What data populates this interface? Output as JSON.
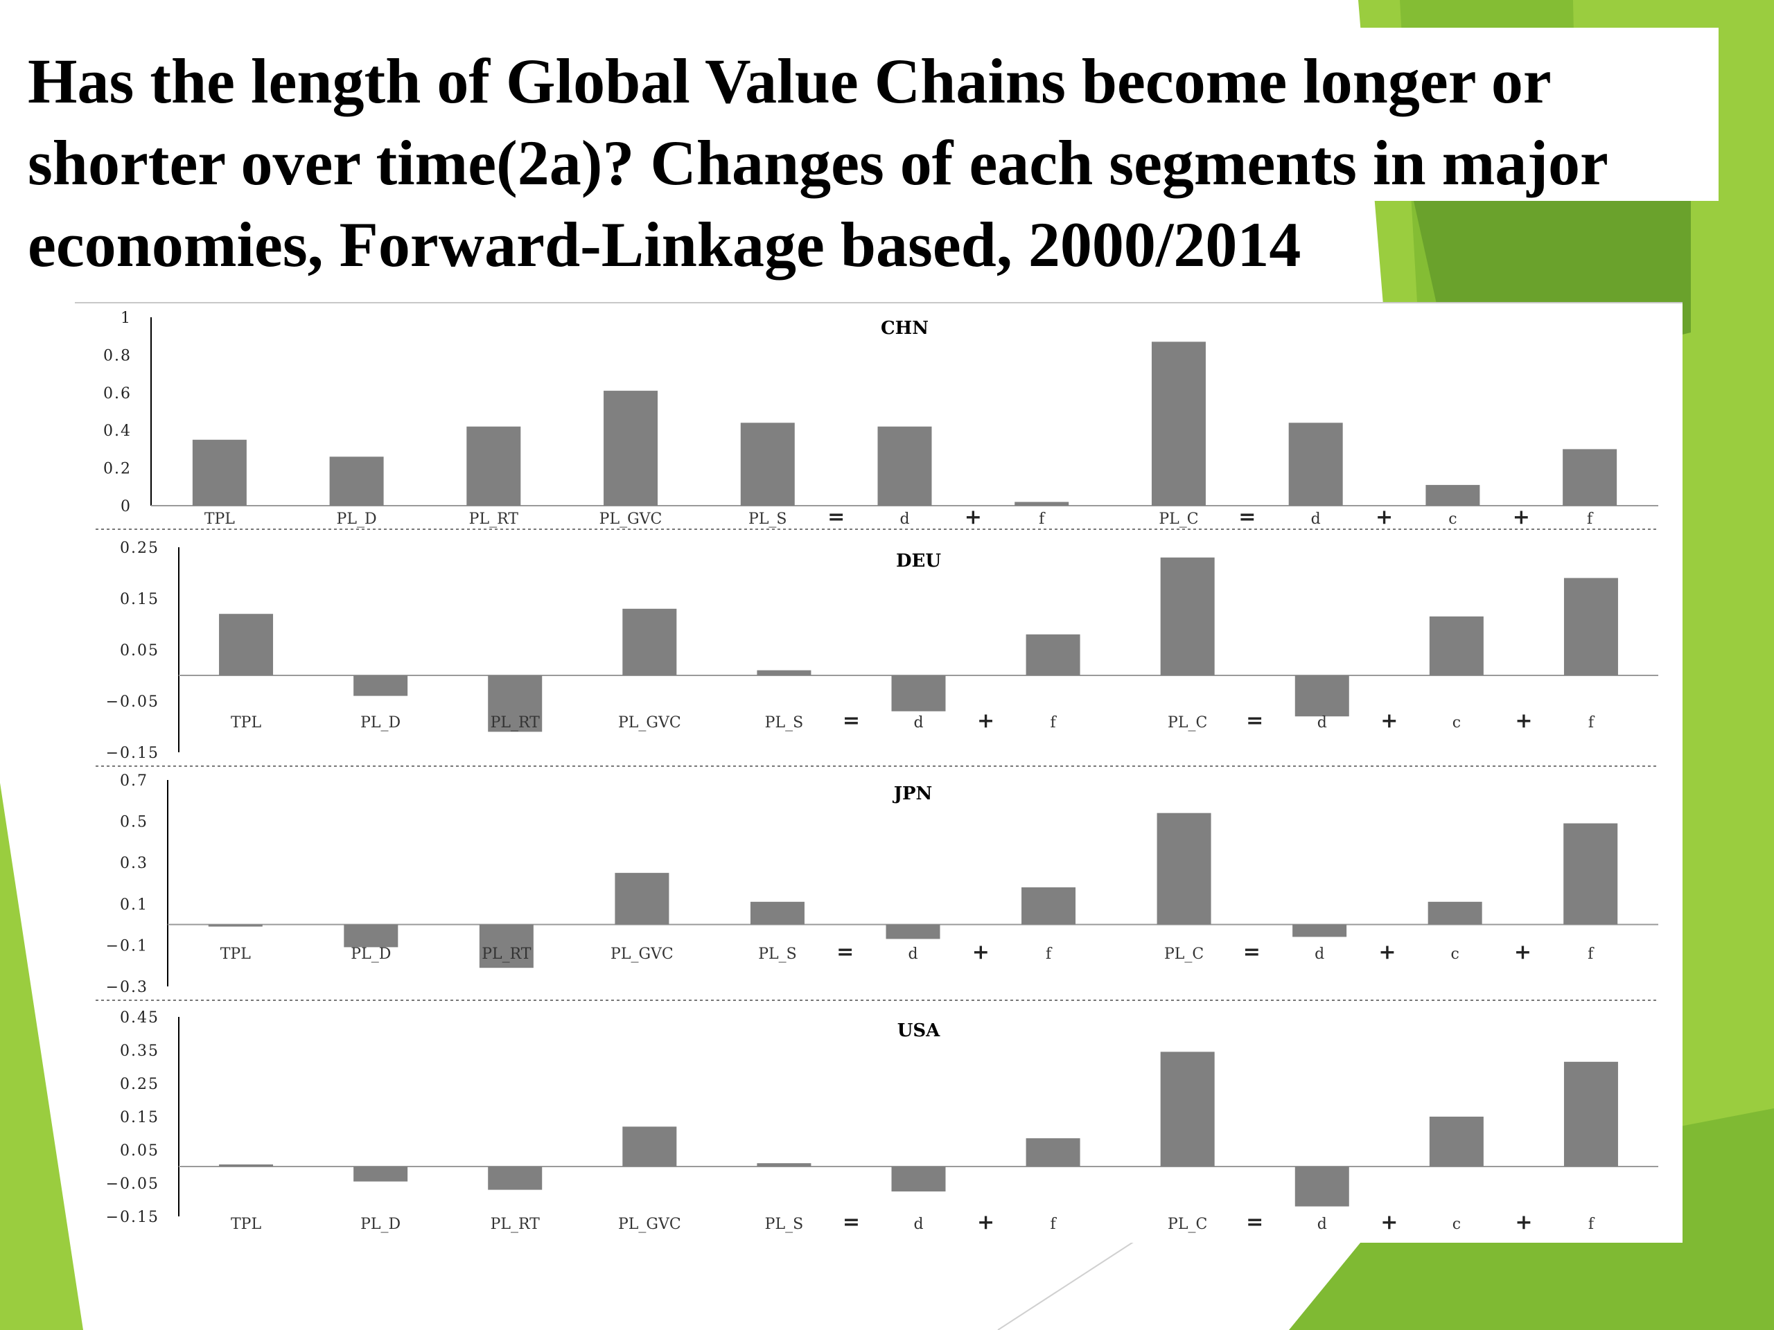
{
  "title": "Has the length of Global Value Chains become longer or shorter over time(2a)? Changes of  each segments in major economies, Forward-Linkage based, 2000/2014",
  "theme_colors": {
    "background": "#ffffff",
    "green_light": "#9acd3f",
    "green_mid": "#84bd34",
    "green_dark": "#6aa22c",
    "bar": "#808080"
  },
  "chart_data": [
    {
      "type": "bar",
      "title": "CHN",
      "categories": [
        "TPL",
        "PL_D",
        "PL_RT",
        "PL_GVC",
        "PL_S",
        "d",
        "f",
        "PL_C",
        "d",
        "c",
        "f"
      ],
      "operators": [
        "=",
        "+",
        "=",
        "+",
        "+"
      ],
      "values": [
        0.35,
        0.26,
        0.42,
        0.61,
        0.44,
        0.42,
        0.02,
        0.87,
        0.44,
        0.11,
        0.3
      ],
      "ylim": [
        0,
        1
      ],
      "yticks": [
        "1",
        "0.8",
        "0.6",
        "0.4",
        "0.2",
        "0"
      ]
    },
    {
      "type": "bar",
      "title": "DEU",
      "categories": [
        "TPL",
        "PL_D",
        "PL_RT",
        "PL_GVC",
        "PL_S",
        "d",
        "f",
        "PL_C",
        "d",
        "c",
        "f"
      ],
      "operators": [
        "=",
        "+",
        "=",
        "+",
        "+"
      ],
      "values": [
        0.12,
        -0.04,
        -0.11,
        0.13,
        0.01,
        -0.07,
        0.08,
        0.23,
        -0.08,
        0.115,
        0.19
      ],
      "ylim": [
        -0.15,
        0.25
      ],
      "yticks": [
        "0.25",
        "0.15",
        "0.05",
        "-0.05",
        "-0.15"
      ]
    },
    {
      "type": "bar",
      "title": "JPN",
      "categories": [
        "TPL",
        "PL_D",
        "PL_RT",
        "PL_GVC",
        "PL_S",
        "d",
        "f",
        "PL_C",
        "d",
        "c",
        "f"
      ],
      "operators": [
        "=",
        "+",
        "=",
        "+",
        "+"
      ],
      "values": [
        -0.01,
        -0.11,
        -0.21,
        0.25,
        0.11,
        -0.07,
        0.18,
        0.54,
        -0.06,
        0.11,
        0.49
      ],
      "ylim": [
        -0.3,
        0.7
      ],
      "yticks": [
        "0.7",
        "0.5",
        "0.3",
        "0.1",
        "-0.1",
        "-0.3"
      ]
    },
    {
      "type": "bar",
      "title": "USA",
      "categories": [
        "TPL",
        "PL_D",
        "PL_RT",
        "PL_GVC",
        "PL_S",
        "d",
        "f",
        "PL_C",
        "d",
        "c",
        "f"
      ],
      "operators": [
        "=",
        "+",
        "=",
        "+",
        "+"
      ],
      "values": [
        0.0,
        -0.045,
        -0.07,
        0.12,
        0.01,
        -0.075,
        0.085,
        0.345,
        -0.12,
        0.15,
        0.315
      ],
      "ylim": [
        -0.15,
        0.45
      ],
      "yticks": [
        "0.45",
        "0.35",
        "0.25",
        "0.15",
        "0.05",
        "-0.05",
        "-0.15"
      ]
    }
  ]
}
